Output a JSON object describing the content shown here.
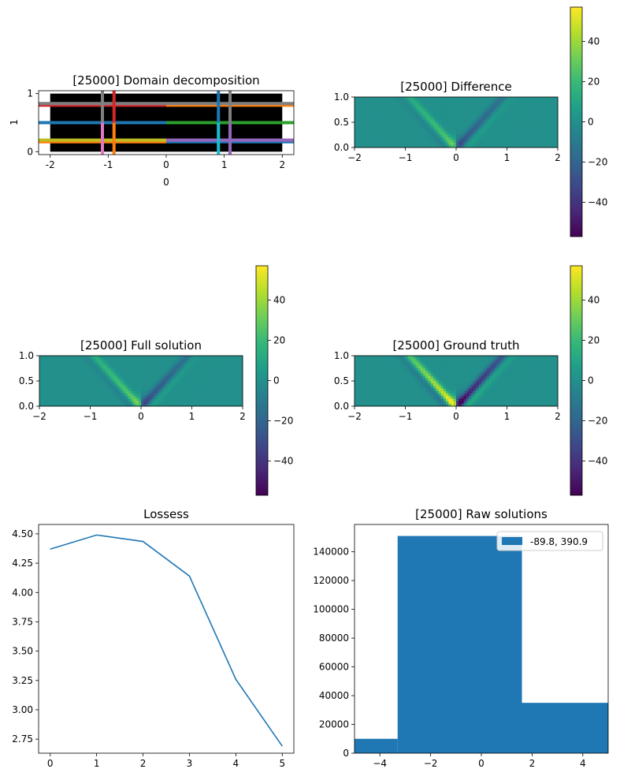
{
  "colors": {
    "viridis": [
      "#440154",
      "#482878",
      "#3e4989",
      "#31688e",
      "#26828e",
      "#1f9e89",
      "#35b779",
      "#6ece58",
      "#b5de2b",
      "#fde725"
    ],
    "line": "#1f77b4",
    "bar": "#1f77b4",
    "tab10": [
      "#1f77b4",
      "#ff7f0e",
      "#2ca02c",
      "#d62728",
      "#9467bd",
      "#8c564b",
      "#e377c2",
      "#7f7f7f",
      "#bcbd22",
      "#17becf"
    ]
  },
  "chart_data": [
    {
      "id": "domain",
      "type": "other",
      "title": "[25000] Domain decomposition",
      "xlabel": "0",
      "ylabel": "1",
      "xlim": [
        -2.2,
        2.2
      ],
      "ylim": [
        -0.05,
        1.05
      ],
      "xticks": [
        "-2",
        "-1",
        "0",
        "1",
        "2"
      ],
      "yticks": [
        "0",
        "1"
      ],
      "region": {
        "x": [
          -2,
          2
        ],
        "y": [
          0,
          1
        ]
      },
      "vertical_lines_x": [
        -1.1,
        -0.9,
        0.9,
        1.1
      ],
      "horizontal_lines_y": [
        0.17,
        0.2,
        0.5,
        0.8,
        0.83
      ]
    },
    {
      "id": "difference",
      "type": "heatmap",
      "title": "[25000] Difference",
      "xlim": [
        -2,
        2
      ],
      "ylim": [
        0,
        1
      ],
      "xticks": [
        "−2",
        "−1",
        "0",
        "1",
        "2"
      ],
      "yticks": [
        "0.0",
        "0.5",
        "1.0"
      ],
      "colorbar": {
        "range": [
          -57,
          57
        ],
        "ticks": [
          "40",
          "20",
          "0",
          "−20",
          "−40"
        ]
      },
      "peak_scale": 0.5
    },
    {
      "id": "full",
      "type": "heatmap",
      "title": "[25000] Full solution",
      "xlim": [
        -2,
        2
      ],
      "ylim": [
        0,
        1
      ],
      "xticks": [
        "−2",
        "−1",
        "0",
        "1",
        "2"
      ],
      "yticks": [
        "0.0",
        "0.5",
        "1.0"
      ],
      "colorbar": {
        "range": [
          -57,
          57
        ],
        "ticks": [
          "40",
          "20",
          "0",
          "−20",
          "−40"
        ]
      },
      "peak_scale": 0.55
    },
    {
      "id": "truth",
      "type": "heatmap",
      "title": "[25000] Ground truth",
      "xlim": [
        -2,
        2
      ],
      "ylim": [
        0,
        1
      ],
      "xticks": [
        "−2",
        "−1",
        "0",
        "1",
        "2"
      ],
      "yticks": [
        "0.0",
        "0.5",
        "1.0"
      ],
      "colorbar": {
        "range": [
          -57,
          57
        ],
        "ticks": [
          "40",
          "20",
          "0",
          "−20",
          "−40"
        ]
      },
      "peak_scale": 1.0
    },
    {
      "id": "losses",
      "type": "line",
      "title": "Lossess",
      "x": [
        0,
        1,
        2,
        3,
        4,
        5
      ],
      "y": [
        4.37,
        4.49,
        4.435,
        4.14,
        3.26,
        2.69
      ],
      "xlim": [
        -0.25,
        5.25
      ],
      "ylim": [
        2.63,
        4.58
      ],
      "xticks": [
        0,
        1,
        2,
        3,
        4,
        5
      ],
      "yticks": [
        "2.75",
        "3.00",
        "3.25",
        "3.50",
        "3.75",
        "4.00",
        "4.25",
        "4.50"
      ],
      "ytick_values": [
        2.75,
        3.0,
        3.25,
        3.5,
        3.75,
        4.0,
        4.25,
        4.5
      ]
    },
    {
      "id": "raw",
      "type": "bar",
      "title": "[25000] Raw solutions",
      "bins": [
        [
          -5,
          -3.3,
          10000
        ],
        [
          -3.3,
          1.6,
          151000
        ],
        [
          1.6,
          5,
          35000
        ]
      ],
      "xlim": [
        -5,
        5
      ],
      "ylim": [
        0,
        159000
      ],
      "xticks": [
        "−4",
        "−2",
        "0",
        "2",
        "4"
      ],
      "xtick_values": [
        -4,
        -2,
        0,
        2,
        4
      ],
      "yticks": [
        "0",
        "20000",
        "40000",
        "60000",
        "80000",
        "100000",
        "120000",
        "140000"
      ],
      "ytick_values": [
        0,
        20000,
        40000,
        60000,
        80000,
        100000,
        120000,
        140000
      ],
      "legend": "-89.8, 390.9",
      "legend_position": "top-right"
    }
  ]
}
